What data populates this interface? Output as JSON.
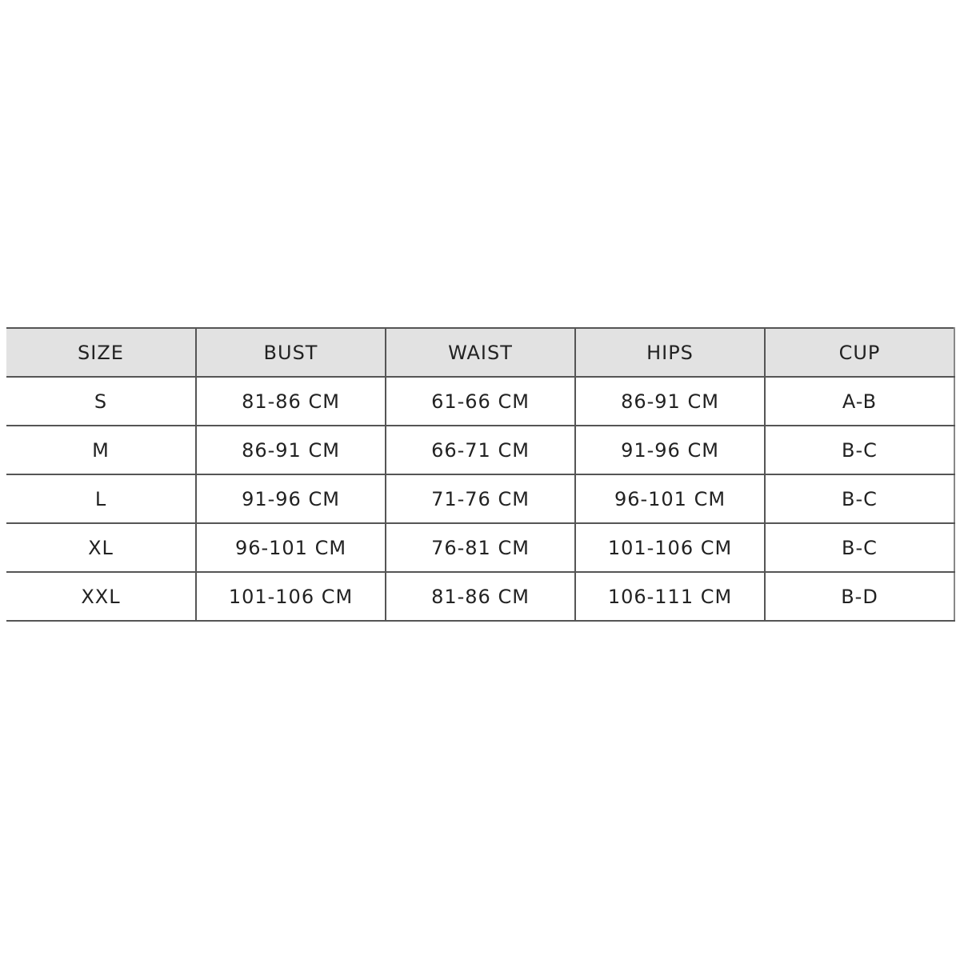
{
  "table": {
    "header": [
      "SIZE",
      "BUST",
      "WAIST",
      "HIPS",
      "CUP"
    ],
    "rows": [
      [
        "S",
        "81-86 CM",
        "61-66 CM",
        "86-91 CM",
        "A-B"
      ],
      [
        "M",
        "86-91 CM",
        "66-71 CM",
        "91-96 CM",
        "B-C"
      ],
      [
        "L",
        "91-96 CM",
        "71-76 CM",
        "96-101 CM",
        "B-C"
      ],
      [
        "XL",
        "96-101 CM",
        "76-81 CM",
        "101-106 CM",
        "B-C"
      ],
      [
        "XXL",
        "101-106 CM",
        "81-86 CM",
        "106-111 CM",
        "B-D"
      ]
    ]
  }
}
